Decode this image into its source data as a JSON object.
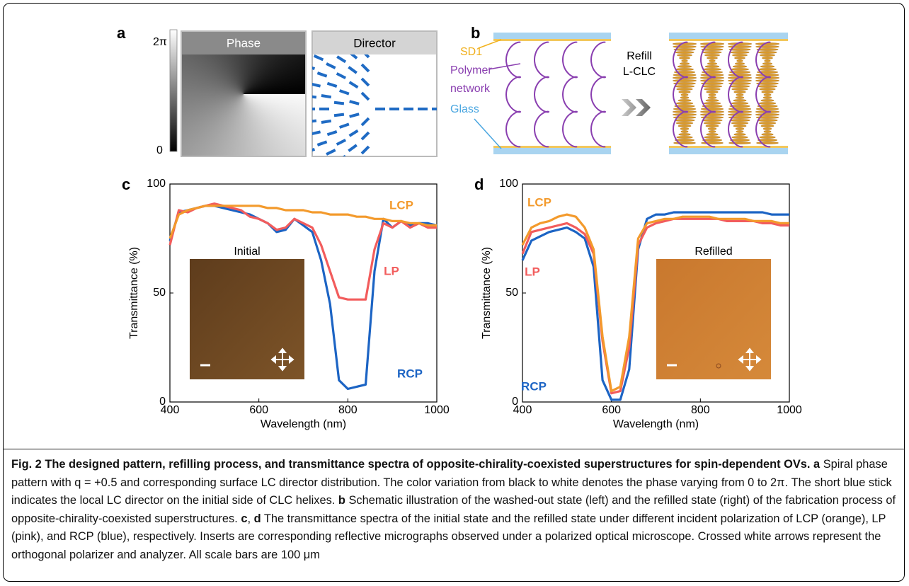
{
  "panels": {
    "a": {
      "label": "a",
      "colorbar_max": "2π",
      "colorbar_min": "0",
      "phase": "Phase",
      "director": "Director"
    },
    "b": {
      "label": "b",
      "sd1": "SD1",
      "polymer": "Polymer",
      "network": "network",
      "glass": "Glass",
      "refill": "Refill",
      "lclc": "L-CLC"
    },
    "c": {
      "label": "c"
    },
    "d": {
      "label": "d"
    }
  },
  "chart_data": [
    {
      "type": "line",
      "inset_label": "Initial",
      "x": [
        400,
        420,
        440,
        460,
        480,
        500,
        520,
        540,
        560,
        580,
        600,
        620,
        640,
        660,
        680,
        700,
        720,
        740,
        760,
        780,
        800,
        820,
        840,
        860,
        880,
        900,
        920,
        940,
        960,
        980,
        1000
      ],
      "series": [
        {
          "name": "LCP",
          "color": "#f39a2c",
          "values": [
            75,
            86,
            88,
            89,
            90,
            90,
            90,
            90,
            90,
            90,
            90,
            89,
            89,
            88,
            88,
            88,
            87,
            87,
            86,
            86,
            86,
            85,
            85,
            84,
            84,
            83,
            83,
            82,
            82,
            81,
            81
          ]
        },
        {
          "name": "LP",
          "color": "#f25c5c",
          "values": [
            72,
            88,
            87,
            89,
            90,
            91,
            90,
            89,
            88,
            85,
            84,
            82,
            79,
            80,
            84,
            82,
            80,
            72,
            60,
            48,
            47,
            47,
            47,
            70,
            82,
            80,
            83,
            80,
            82,
            80,
            80
          ]
        },
        {
          "name": "RCP",
          "color": "#1c64c4",
          "values": [
            74,
            87,
            88,
            89,
            90,
            90,
            89,
            88,
            87,
            86,
            84,
            82,
            78,
            79,
            84,
            81,
            78,
            65,
            45,
            10,
            6,
            7,
            8,
            60,
            84,
            80,
            83,
            81,
            82,
            82,
            81
          ]
        }
      ],
      "xlim": [
        400,
        1000
      ],
      "ylim": [
        0,
        100
      ],
      "xticks": [
        400,
        600,
        800,
        1000
      ],
      "yticks": [
        0,
        50,
        100
      ],
      "xlabel": "Wavelength (nm)",
      "ylabel": "Transmittance (%)"
    },
    {
      "type": "line",
      "inset_label": "Refilled",
      "x": [
        400,
        420,
        440,
        460,
        480,
        500,
        520,
        540,
        560,
        580,
        600,
        620,
        640,
        660,
        680,
        700,
        720,
        740,
        760,
        780,
        800,
        820,
        840,
        860,
        880,
        900,
        920,
        940,
        960,
        980,
        1000
      ],
      "series": [
        {
          "name": "LCP",
          "color": "#f39a2c",
          "values": [
            72,
            80,
            82,
            83,
            85,
            86,
            85,
            80,
            70,
            30,
            5,
            7,
            30,
            75,
            82,
            83,
            84,
            84,
            85,
            85,
            85,
            85,
            84,
            84,
            84,
            84,
            83,
            83,
            83,
            82,
            82
          ]
        },
        {
          "name": "LP",
          "color": "#f25c5c",
          "values": [
            68,
            78,
            79,
            80,
            81,
            82,
            80,
            77,
            68,
            28,
            4,
            5,
            25,
            72,
            80,
            82,
            83,
            84,
            84,
            84,
            84,
            84,
            84,
            83,
            83,
            83,
            83,
            82,
            82,
            81,
            81
          ]
        },
        {
          "name": "RCP",
          "color": "#1c64c4",
          "values": [
            65,
            74,
            76,
            78,
            79,
            80,
            78,
            75,
            62,
            10,
            1,
            1,
            15,
            70,
            84,
            86,
            86,
            87,
            87,
            87,
            87,
            87,
            87,
            87,
            87,
            87,
            87,
            87,
            86,
            86,
            86
          ]
        }
      ],
      "xlim": [
        400,
        1000
      ],
      "ylim": [
        0,
        100
      ],
      "xticks": [
        400,
        600,
        800,
        1000
      ],
      "yticks": [
        0,
        50,
        100
      ],
      "xlabel": "Wavelength (nm)",
      "ylabel": "Transmittance (%)"
    }
  ],
  "caption": {
    "parts": [
      {
        "text": "Fig. 2 The designed pattern, refilling process, and transmittance spectra of opposite-chirality-coexisted superstructures for spin-dependent OVs.",
        "bold": true
      },
      {
        "text": "a",
        "bold": true
      },
      {
        "text": "Spiral phase pattern with q = +0.5 and corresponding surface LC director distribution. The color variation from black to white denotes the phase varying from 0 to 2π. The short blue stick indicates the local LC director on the initial side of CLC helixes.",
        "bold": false
      },
      {
        "text": "b",
        "bold": true
      },
      {
        "text": "Schematic illustration of the washed-out state (left) and the refilled state (right) of the fabrication process of opposite-chirality-coexisted superstructures.",
        "bold": false
      },
      {
        "text": "c",
        "bold": true
      },
      {
        "text": ",",
        "bold": false
      },
      {
        "text": "d",
        "bold": true
      },
      {
        "text": "The transmittance spectra of the initial state and the refilled state under different incident polarization of LCP (orange), LP (pink), and RCP (blue), respectively. Inserts are corresponding reflective micrographs observed under a polarized optical microscope. Crossed white arrows represent the orthogonal polarizer and analyzer. All scale bars are 100 μm",
        "bold": false
      }
    ]
  }
}
